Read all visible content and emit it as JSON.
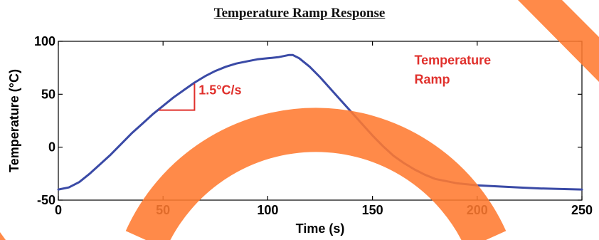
{
  "chart_data": {
    "type": "line",
    "title": "Temperature Ramp Response",
    "xlabel": "Time (s)",
    "ylabel": "Temperature (°C)",
    "xlim": [
      0,
      250
    ],
    "ylim": [
      -50,
      100
    ],
    "xticks": [
      "0",
      "50",
      "100",
      "150",
      "200",
      "250"
    ],
    "yticks": [
      "-50",
      "0",
      "50",
      "100"
    ],
    "grid": false,
    "series": [
      {
        "name": "",
        "color": "#3a4aa6",
        "x": [
          0,
          5,
          10,
          15,
          20,
          25,
          30,
          35,
          40,
          45,
          50,
          55,
          60,
          65,
          70,
          75,
          80,
          85,
          90,
          95,
          100,
          105,
          110,
          112,
          115,
          120,
          125,
          130,
          135,
          140,
          145,
          150,
          155,
          160,
          165,
          170,
          175,
          180,
          185,
          190,
          195,
          200,
          210,
          220,
          230,
          240,
          250
        ],
        "y": [
          -40,
          -38,
          -33,
          -25,
          -16,
          -7,
          3,
          13,
          22,
          31,
          39,
          47,
          54,
          61,
          67,
          72,
          76,
          79,
          81,
          83,
          84,
          85,
          87,
          87,
          84,
          76,
          66,
          55,
          44,
          33,
          22,
          11,
          1,
          -8,
          -15,
          -21,
          -26,
          -30,
          -32,
          -34,
          -35,
          -36,
          -37,
          -38,
          -39,
          -39.5,
          -40
        ]
      }
    ],
    "annotations": [
      {
        "text": "Temperature",
        "x": 170,
        "y": 78,
        "color": "#e0302c"
      },
      {
        "text": "Ramp",
        "x": 170,
        "y": 60,
        "color": "#e0302c"
      },
      {
        "text": "1.5°C/s",
        "x": 67,
        "y": 50,
        "color": "#e0302c"
      }
    ],
    "slope_marker": {
      "x": [
        48,
        65,
        65
      ],
      "y": [
        35,
        35,
        60
      ],
      "color": "#e0302c"
    }
  },
  "overlay": {
    "color": "#ff7a30"
  }
}
